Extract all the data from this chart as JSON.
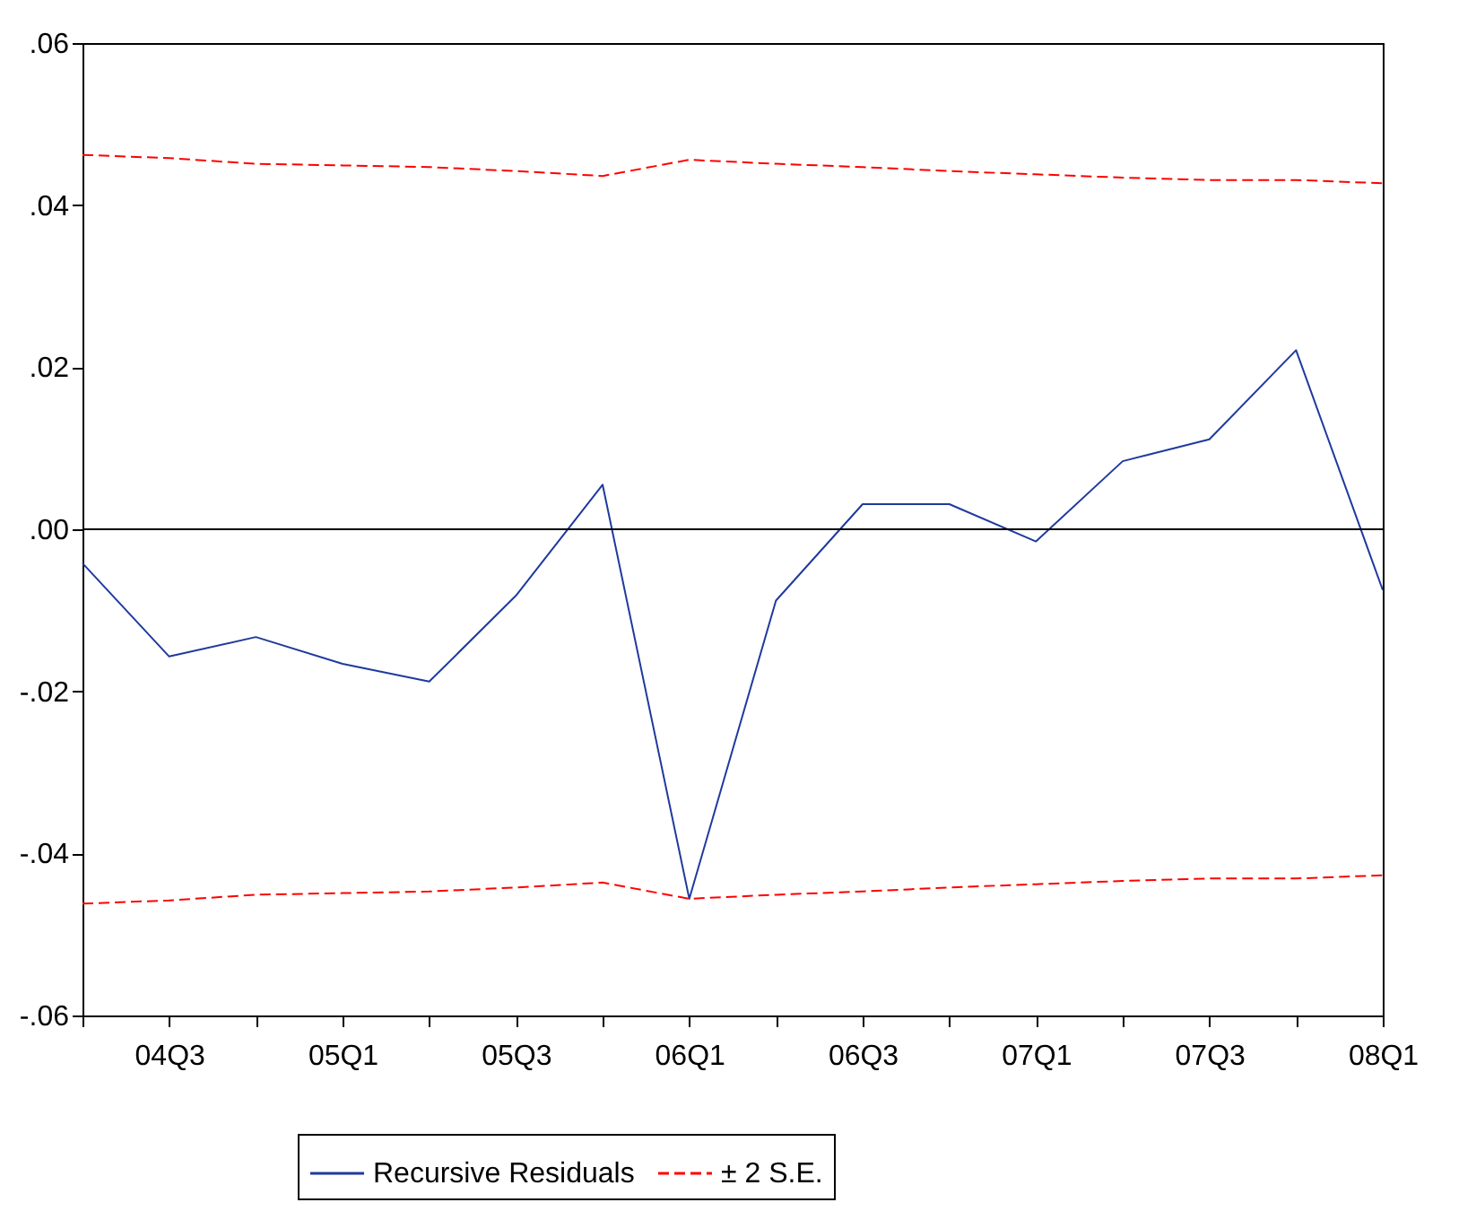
{
  "chart_data": {
    "type": "line",
    "categories": [
      null,
      "04Q3",
      null,
      "05Q1",
      null,
      "05Q3",
      null,
      "06Q1",
      null,
      "06Q3",
      null,
      "07Q1",
      null,
      "07Q3",
      null,
      "08Q1"
    ],
    "series": [
      {
        "name": "Recursive Residuals",
        "color": "#1f3a9e",
        "line_style": "solid",
        "values": [
          -0.0042,
          -0.0157,
          -0.0133,
          -0.0166,
          -0.0188,
          -0.0082,
          0.0055,
          -0.0456,
          -0.0088,
          0.0031,
          0.0031,
          -0.0015,
          0.0084,
          0.0111,
          0.0221,
          -0.0075
        ]
      },
      {
        "name": "± 2 S.E.",
        "color": "#ff0000",
        "line_style": "dashed",
        "values": [
          0.0462,
          0.0458,
          0.0451,
          0.0449,
          0.0447,
          0.0442,
          0.0436,
          0.0456,
          0.0451,
          0.0447,
          0.0442,
          0.0438,
          0.0434,
          0.0431,
          0.0431,
          0.0427
        ]
      },
      {
        "color": "#ff0000",
        "line_style": "dashed",
        "values": [
          -0.0462,
          -0.0458,
          -0.0451,
          -0.0449,
          -0.0447,
          -0.0442,
          -0.0436,
          -0.0456,
          -0.0451,
          -0.0447,
          -0.0442,
          -0.0438,
          -0.0434,
          -0.0431,
          -0.0431,
          -0.0427
        ]
      }
    ],
    "ylim": [
      -0.06,
      0.06
    ],
    "yticks": [
      {
        "value": -0.06,
        "label": "-.06"
      },
      {
        "value": -0.04,
        "label": "-.04"
      },
      {
        "value": -0.02,
        "label": "-.02"
      },
      {
        "value": 0,
        "label": ".00"
      },
      {
        "value": 0.02,
        "label": ".02"
      },
      {
        "value": 0.04,
        "label": ".04"
      },
      {
        "value": 0.06,
        "label": ".06"
      }
    ],
    "ref_lines": [
      {
        "axis": "y",
        "value": 0,
        "color": "#000000"
      }
    ],
    "grid": false,
    "legend": "bottom"
  }
}
